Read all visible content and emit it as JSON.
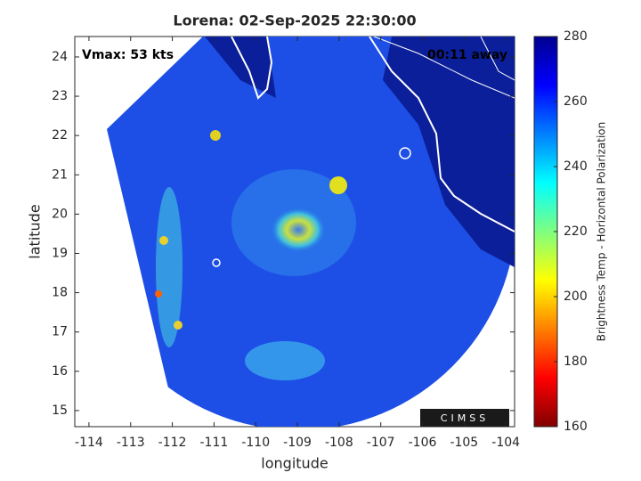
{
  "title": "Lorena: 02-Sep-2025 22:30:00",
  "annotations": {
    "vmax": "Vmax: 53 kts",
    "time_away": "00:11 away"
  },
  "map": {
    "xlabel": "longitude",
    "ylabel": "latitude",
    "xlim": [
      -114.34,
      -103.79
    ],
    "ylim": [
      14.59,
      24.52
    ],
    "xticks": [
      -114,
      -113,
      -112,
      -111,
      -110,
      -109,
      -108,
      -107,
      -106,
      -105,
      -104
    ],
    "yticks": [
      15,
      16,
      17,
      18,
      19,
      20,
      21,
      22,
      23,
      24
    ]
  },
  "colorbar": {
    "label": "Brightness Temp - Horizontal Polarization",
    "lim": [
      160,
      280
    ],
    "ticks": [
      160,
      180,
      200,
      220,
      240,
      260,
      280
    ]
  },
  "logo": "CIMSS"
}
